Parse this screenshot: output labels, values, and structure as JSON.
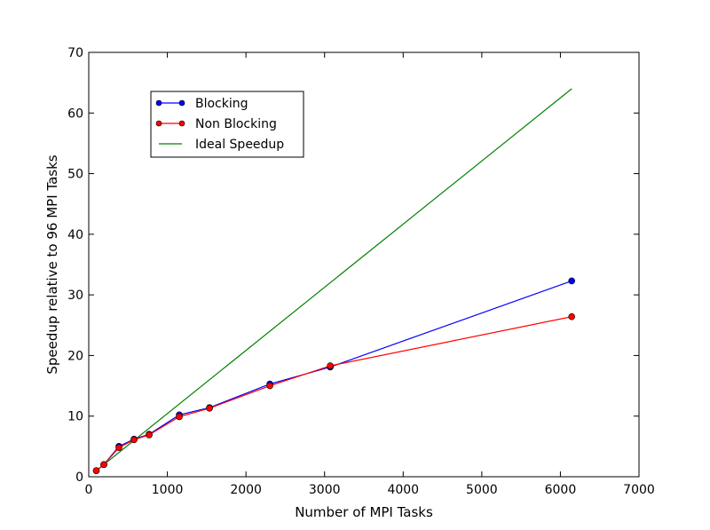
{
  "chart_data": {
    "type": "line",
    "title": "",
    "xlabel": "Number of MPI Tasks",
    "ylabel": "Speedup relative to 96 MPI Tasks",
    "xlim": [
      0,
      7000
    ],
    "ylim": [
      0,
      70
    ],
    "xticks": [
      0,
      1000,
      2000,
      3000,
      4000,
      5000,
      6000,
      7000
    ],
    "yticks": [
      0,
      10,
      20,
      30,
      40,
      50,
      60,
      70
    ],
    "grid": false,
    "legend_position": "upper-left",
    "series": [
      {
        "name": "Blocking",
        "color": "#0000ff",
        "marker": "circle",
        "x": [
          96,
          192,
          384,
          576,
          768,
          1152,
          1536,
          2304,
          3072,
          6144
        ],
        "y": [
          1.0,
          2.0,
          5.0,
          6.2,
          7.0,
          10.2,
          11.4,
          15.3,
          18.1,
          32.3
        ]
      },
      {
        "name": "Non Blocking",
        "color": "#ff0000",
        "marker": "circle",
        "x": [
          96,
          192,
          384,
          576,
          768,
          1152,
          1536,
          2304,
          3072,
          6144
        ],
        "y": [
          1.0,
          2.0,
          4.8,
          6.1,
          6.9,
          9.9,
          11.3,
          15.0,
          18.3,
          26.4
        ]
      },
      {
        "name": "Ideal Speedup",
        "color": "#008000",
        "marker": "none",
        "x": [
          96,
          6144
        ],
        "y": [
          1.0,
          64.0
        ]
      }
    ]
  }
}
